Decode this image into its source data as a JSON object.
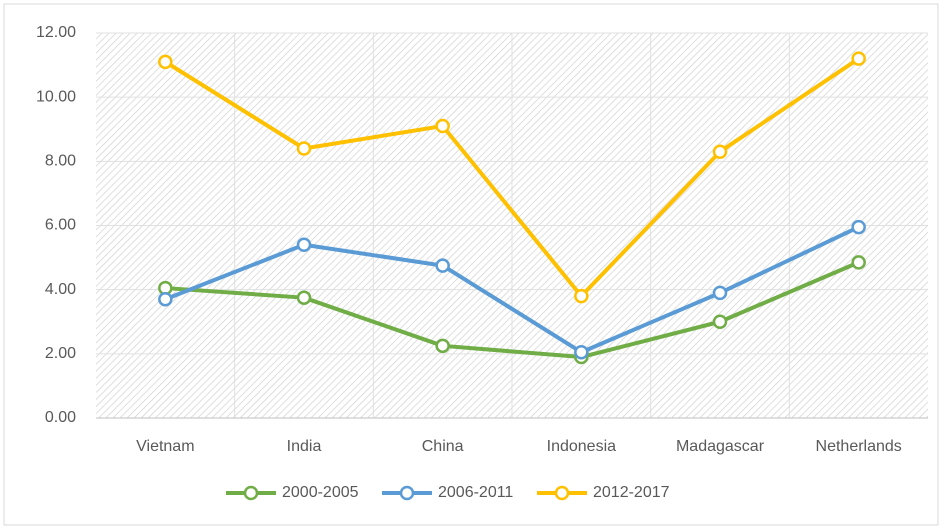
{
  "chart_data": {
    "type": "line",
    "categories": [
      "Vietnam",
      "India",
      "China",
      "Indonesia",
      "Madagascar",
      "Netherlands"
    ],
    "series": [
      {
        "name": "2000-2005",
        "color": "#70ad47",
        "values": [
          4.05,
          3.75,
          2.25,
          1.9,
          3.0,
          4.85
        ]
      },
      {
        "name": "2006-2011",
        "color": "#5b9bd5",
        "values": [
          3.7,
          5.4,
          4.75,
          2.05,
          3.9,
          5.95
        ]
      },
      {
        "name": "2012-2017",
        "color": "#ffc000",
        "values": [
          11.1,
          8.4,
          9.1,
          3.8,
          8.3,
          11.2
        ]
      }
    ],
    "ylim": [
      0,
      12
    ],
    "yticks": [
      {
        "value": 0,
        "label": "0.00"
      },
      {
        "value": 2,
        "label": "2.00"
      },
      {
        "value": 4,
        "label": "4.00"
      },
      {
        "value": 6,
        "label": "6.00"
      },
      {
        "value": 8,
        "label": "8.00"
      },
      {
        "value": 10,
        "label": "10.00"
      },
      {
        "value": 12,
        "label": "12.00"
      }
    ],
    "grid": true,
    "legend": "bottom"
  }
}
